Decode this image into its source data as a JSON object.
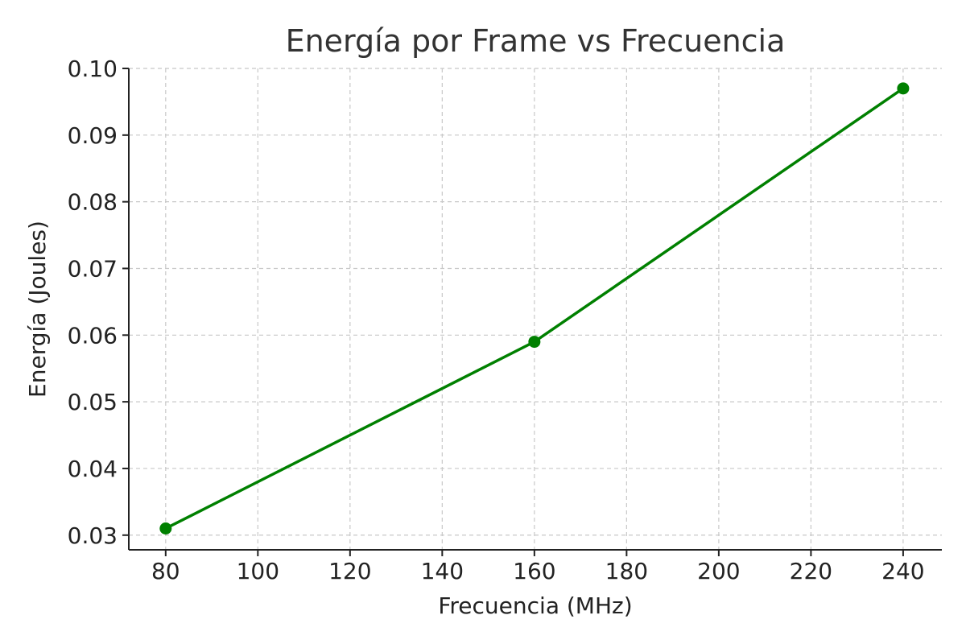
{
  "chart_data": {
    "type": "line",
    "title": "Energía por Frame vs Frecuencia",
    "xlabel": "Frecuencia (MHz)",
    "ylabel": "Energía (Joules)",
    "x": [
      80,
      160,
      240
    ],
    "series": [
      {
        "values": [
          0.031,
          0.059,
          0.097
        ],
        "color": "#008000",
        "marker": "circle"
      }
    ],
    "xlim": [
      72,
      248.4
    ],
    "ylim": [
      0.0278,
      0.1
    ],
    "xticks": [
      "80",
      "100",
      "120",
      "140",
      "160",
      "180",
      "200",
      "220",
      "240"
    ],
    "yticks": [
      "0.03",
      "0.04",
      "0.05",
      "0.06",
      "0.07",
      "0.08",
      "0.09",
      "0.10"
    ],
    "grid": true,
    "grid_style": "dashed",
    "legend": "none"
  }
}
